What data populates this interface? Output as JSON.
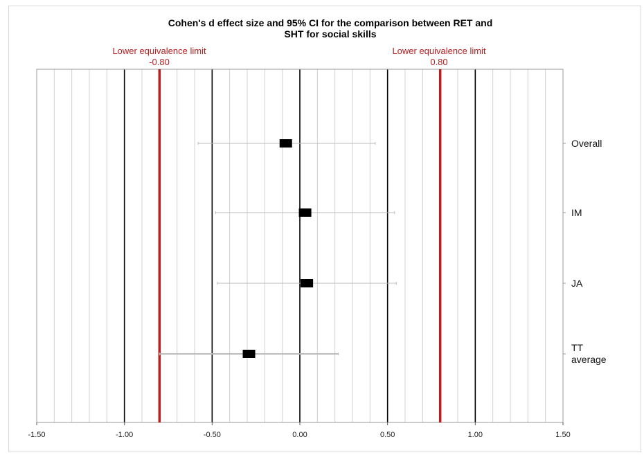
{
  "chart_data": {
    "type": "forest",
    "title_lines": [
      "Cohen's d effect size and 95% CI for the comparison between RET and",
      "SHT for social skills"
    ],
    "xlim": [
      -1.5,
      1.5
    ],
    "x_ticks": [
      -1.5,
      -1.0,
      -0.5,
      0.0,
      0.5,
      1.0,
      1.5
    ],
    "x_tick_labels": [
      "-1.50",
      "-1.00",
      "-0.50",
      "0.00",
      "0.50",
      "1.00",
      "1.50"
    ],
    "grid": "vertical minor lines every 0.10, major black lines every 0.50",
    "equivalence_limits": [
      {
        "label": "Lower equivalence limit",
        "value_label": "-0.80",
        "value": -0.8
      },
      {
        "label": "Lower equivalence limit",
        "value_label": "0.80",
        "value": 0.8
      }
    ],
    "rows": [
      {
        "label_lines": [
          "Overall"
        ],
        "estimate": -0.08,
        "ci": [
          -0.58,
          0.43
        ]
      },
      {
        "label_lines": [
          "IM"
        ],
        "estimate": 0.03,
        "ci": [
          -0.48,
          0.54
        ]
      },
      {
        "label_lines": [
          "JA"
        ],
        "estimate": 0.04,
        "ci": [
          -0.47,
          0.55
        ]
      },
      {
        "label_lines": [
          "TT",
          "average"
        ],
        "estimate": -0.29,
        "ci": [
          -0.8,
          0.22
        ]
      }
    ],
    "colors": {
      "limit_line": "#b51f1f",
      "limit_text": "#b51f1f",
      "estimate": "#000000",
      "major_grid": "#000000",
      "minor_grid": "#d0d0d0",
      "ci_line": "#bbbbbb"
    }
  }
}
